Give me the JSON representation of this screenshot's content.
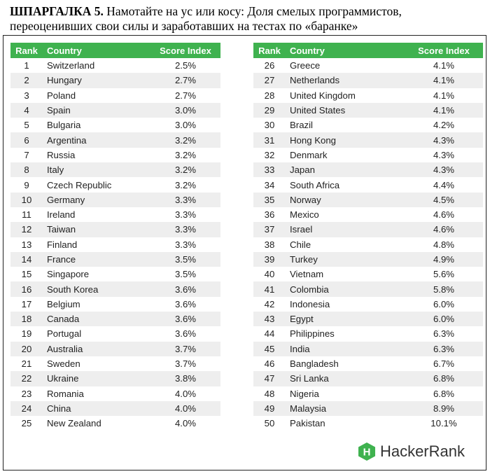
{
  "title": {
    "bold": "ШПАРГАЛКА 5.",
    "text": " Намотайте на ус или косу: Доля смелых программистов, переоценивших свои силы и заработавших на тестах по «баранке»"
  },
  "headers": {
    "rank": "Rank",
    "country": "Country",
    "score": "Score Index"
  },
  "brand": {
    "name": "HackerRank",
    "badge_letter": "H",
    "color": "#3fb24f"
  },
  "left_rows": [
    {
      "rank": "1",
      "country": "Switzerland",
      "score": "2.5%"
    },
    {
      "rank": "2",
      "country": "Hungary",
      "score": "2.7%"
    },
    {
      "rank": "3",
      "country": "Poland",
      "score": "2.7%"
    },
    {
      "rank": "4",
      "country": "Spain",
      "score": "3.0%"
    },
    {
      "rank": "5",
      "country": "Bulgaria",
      "score": "3.0%"
    },
    {
      "rank": "6",
      "country": "Argentina",
      "score": "3.2%"
    },
    {
      "rank": "7",
      "country": "Russia",
      "score": "3.2%"
    },
    {
      "rank": "8",
      "country": "Italy",
      "score": "3.2%"
    },
    {
      "rank": "9",
      "country": "Czech Republic",
      "score": "3.2%"
    },
    {
      "rank": "10",
      "country": "Germany",
      "score": "3.3%"
    },
    {
      "rank": "11",
      "country": "Ireland",
      "score": "3.3%"
    },
    {
      "rank": "12",
      "country": "Taiwan",
      "score": "3.3%"
    },
    {
      "rank": "13",
      "country": "Finland",
      "score": "3.3%"
    },
    {
      "rank": "14",
      "country": "France",
      "score": "3.5%"
    },
    {
      "rank": "15",
      "country": "Singapore",
      "score": "3.5%"
    },
    {
      "rank": "16",
      "country": "South Korea",
      "score": "3.6%"
    },
    {
      "rank": "17",
      "country": "Belgium",
      "score": "3.6%"
    },
    {
      "rank": "18",
      "country": "Canada",
      "score": "3.6%"
    },
    {
      "rank": "19",
      "country": "Portugal",
      "score": "3.6%"
    },
    {
      "rank": "20",
      "country": "Australia",
      "score": "3.7%"
    },
    {
      "rank": "21",
      "country": "Sweden",
      "score": "3.7%"
    },
    {
      "rank": "22",
      "country": "Ukraine",
      "score": "3.8%"
    },
    {
      "rank": "23",
      "country": "Romania",
      "score": "4.0%"
    },
    {
      "rank": "24",
      "country": "China",
      "score": "4.0%"
    },
    {
      "rank": "25",
      "country": "New Zealand",
      "score": "4.0%"
    }
  ],
  "right_rows": [
    {
      "rank": "26",
      "country": "Greece",
      "score": "4.1%"
    },
    {
      "rank": "27",
      "country": "Netherlands",
      "score": "4.1%"
    },
    {
      "rank": "28",
      "country": "United Kingdom",
      "score": "4.1%"
    },
    {
      "rank": "29",
      "country": "United States",
      "score": "4.1%"
    },
    {
      "rank": "30",
      "country": "Brazil",
      "score": "4.2%"
    },
    {
      "rank": "31",
      "country": "Hong Kong",
      "score": "4.3%"
    },
    {
      "rank": "32",
      "country": "Denmark",
      "score": "4.3%"
    },
    {
      "rank": "33",
      "country": "Japan",
      "score": "4.3%"
    },
    {
      "rank": "34",
      "country": "South Africa",
      "score": "4.4%"
    },
    {
      "rank": "35",
      "country": "Norway",
      "score": "4.5%"
    },
    {
      "rank": "36",
      "country": "Mexico",
      "score": "4.6%"
    },
    {
      "rank": "37",
      "country": "Israel",
      "score": "4.6%"
    },
    {
      "rank": "38",
      "country": "Chile",
      "score": "4.8%"
    },
    {
      "rank": "39",
      "country": "Turkey",
      "score": "4.9%"
    },
    {
      "rank": "40",
      "country": "Vietnam",
      "score": "5.6%"
    },
    {
      "rank": "41",
      "country": "Colombia",
      "score": "5.8%"
    },
    {
      "rank": "42",
      "country": "Indonesia",
      "score": "6.0%"
    },
    {
      "rank": "43",
      "country": "Egypt",
      "score": "6.0%"
    },
    {
      "rank": "44",
      "country": "Philippines",
      "score": "6.3%"
    },
    {
      "rank": "45",
      "country": "India",
      "score": "6.3%"
    },
    {
      "rank": "46",
      "country": "Bangladesh",
      "score": "6.7%"
    },
    {
      "rank": "47",
      "country": "Sri Lanka",
      "score": "6.8%"
    },
    {
      "rank": "48",
      "country": "Nigeria",
      "score": "6.8%"
    },
    {
      "rank": "49",
      "country": "Malaysia",
      "score": "8.9%"
    },
    {
      "rank": "50",
      "country": "Pakistan",
      "score": "10.1%"
    }
  ]
}
